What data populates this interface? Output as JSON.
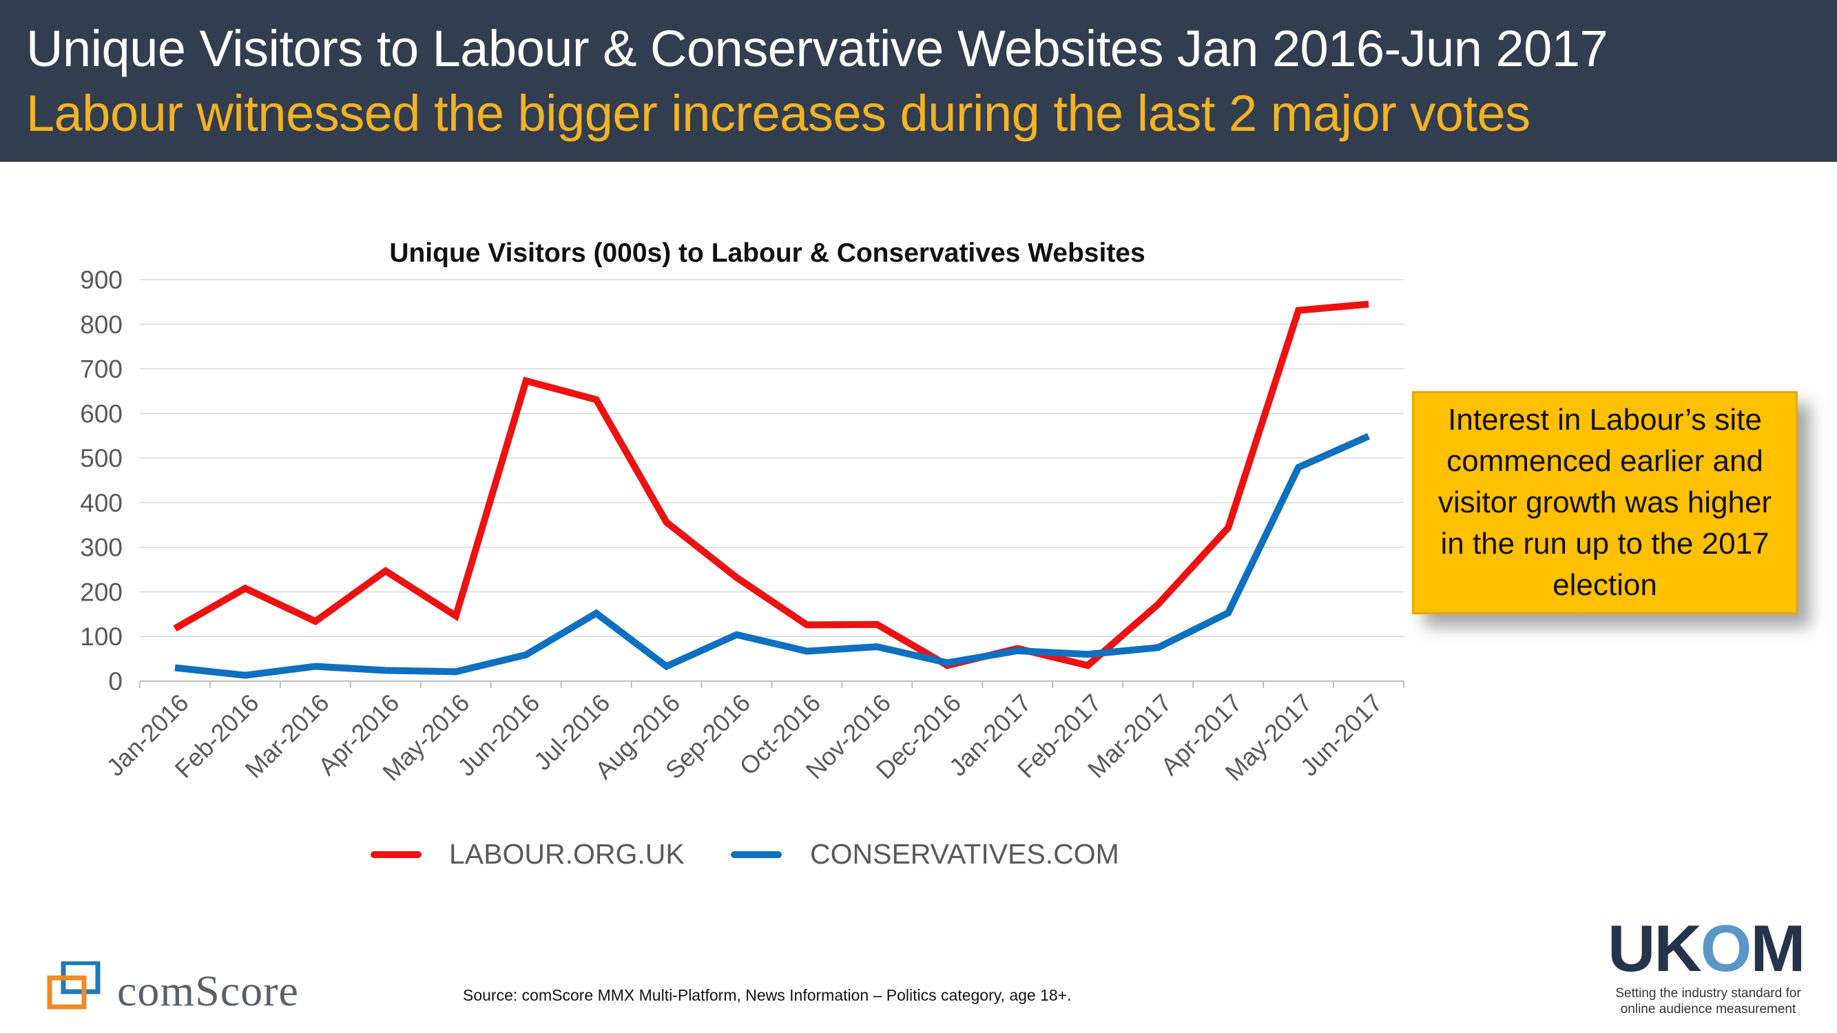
{
  "header": {
    "title": "Unique Visitors to Labour & Conservative Websites Jan 2016-Jun 2017",
    "subtitle": "Labour witnessed the bigger increases during the last 2 major votes"
  },
  "callout": {
    "text": "Interest in Labour’s site commenced earlier and visitor growth was higher in the run up to the 2017 election"
  },
  "footer": {
    "source": "Source: comScore MMX Multi-Platform,  News Information – Politics category, age  18+.",
    "comscore_logo": "comScore",
    "ukom_logo": "UKOM",
    "ukom_tagline_1": "Setting the industry standard for",
    "ukom_tagline_2": "online audience measurement"
  },
  "colors": {
    "banner": "#323d4f",
    "subtitle": "#f2b324",
    "labour": "#ee1111",
    "conservatives": "#0e70c0",
    "callout": "#ffc000"
  },
  "chart_data": {
    "type": "line",
    "title": "Unique Visitors (000s) to Labour & Conservatives Websites",
    "xlabel": "",
    "ylabel": "",
    "ylim": [
      0,
      900
    ],
    "yticks": [
      0,
      100,
      200,
      300,
      400,
      500,
      600,
      700,
      800,
      900
    ],
    "grid": true,
    "legend_position": "bottom",
    "categories": [
      "Jan-2016",
      "Feb-2016",
      "Mar-2016",
      "Apr-2016",
      "May-2016",
      "Jun-2016",
      "Jul-2016",
      "Aug-2016",
      "Sep-2016",
      "Oct-2016",
      "Nov-2016",
      "Dec-2016",
      "Jan-2017",
      "Feb-2017",
      "Mar-2017",
      "Apr-2017",
      "May-2017",
      "Jun-2017"
    ],
    "series": [
      {
        "name": "LABOUR.ORG.UK",
        "color": "#ee1111",
        "values": [
          118,
          208,
          134,
          247,
          146,
          673,
          631,
          356,
          232,
          126,
          127,
          35,
          73,
          35,
          172,
          344,
          831,
          845
        ]
      },
      {
        "name": "CONSERVATIVES.COM",
        "color": "#0e70c0",
        "values": [
          30,
          13,
          33,
          24,
          21,
          59,
          152,
          33,
          104,
          67,
          77,
          41,
          68,
          60,
          75,
          153,
          479,
          549
        ]
      }
    ]
  }
}
